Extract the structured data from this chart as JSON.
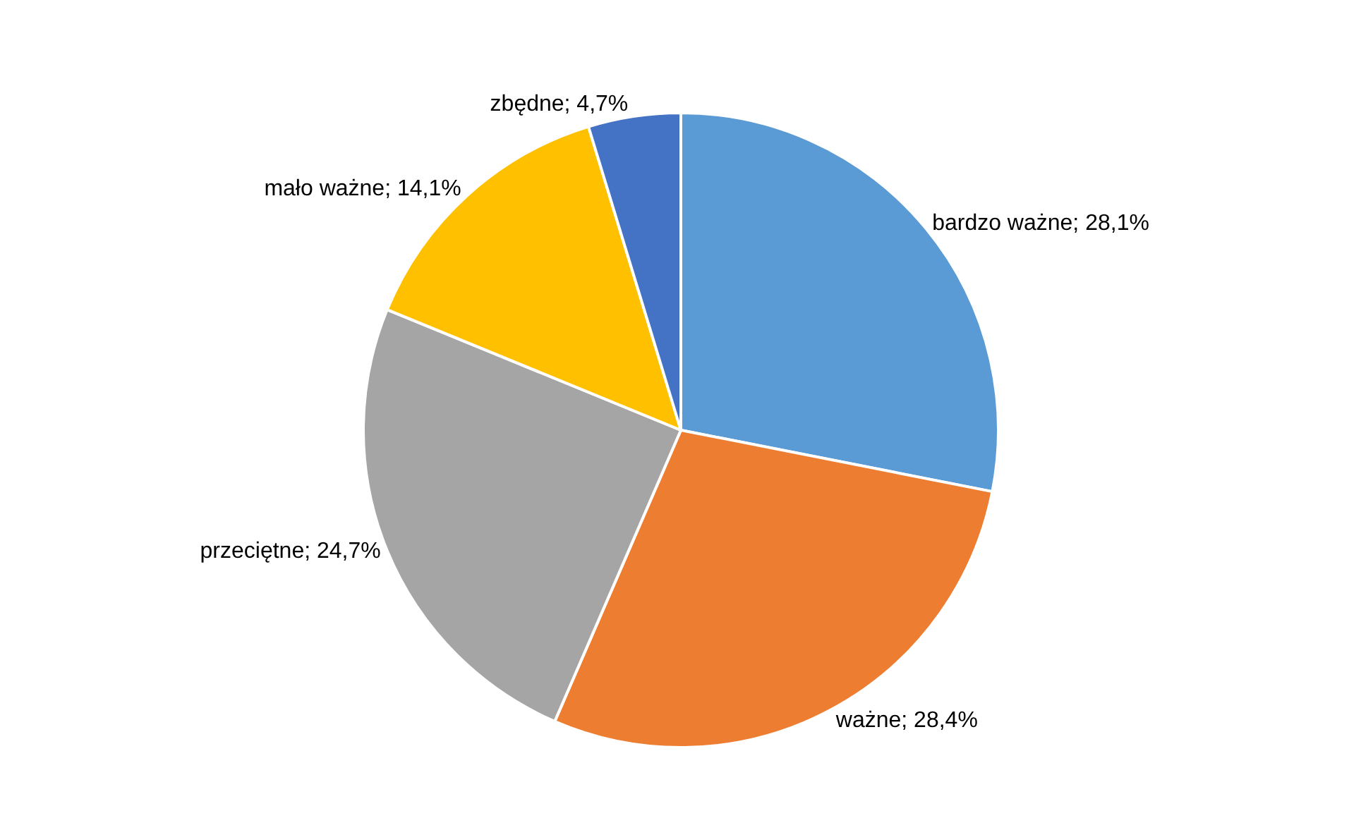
{
  "chart_data": {
    "type": "pie",
    "categories": [
      "bardzo ważne",
      "ważne",
      "przeciętne",
      "mało ważne",
      "zbędne"
    ],
    "values": [
      28.1,
      28.4,
      24.7,
      14.1,
      4.7
    ],
    "value_labels": [
      "28,1%",
      "28,4%",
      "24,7%",
      "14,1%",
      "4,7%"
    ],
    "colors": [
      "#5b9bd5",
      "#ed7d31",
      "#a5a5a5",
      "#ffc000",
      "#4472c4"
    ],
    "legend": false
  }
}
